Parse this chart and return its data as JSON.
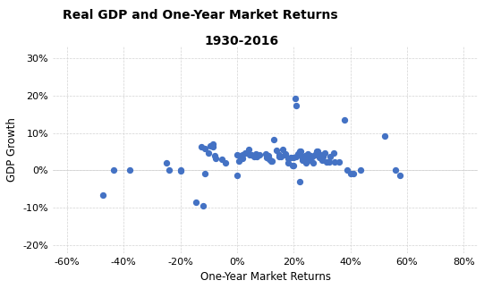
{
  "title_line1": "Real GDP and One-Year Market Returns",
  "title_line2": "1930-2016",
  "xlabel": "One-Year Market Returns",
  "ylabel": "GDP Growth",
  "xlim": [
    -0.65,
    0.85
  ],
  "ylim": [
    -0.22,
    0.33
  ],
  "xticks": [
    -0.6,
    -0.4,
    -0.2,
    0.0,
    0.2,
    0.4,
    0.6,
    0.8
  ],
  "yticks": [
    -0.2,
    -0.1,
    0.0,
    0.1,
    0.2,
    0.3
  ],
  "dot_color": "#4472C4",
  "dot_size": 18,
  "scatter_x": [
    -0.473,
    -0.435,
    -0.38,
    -0.25,
    -0.24,
    -0.2,
    -0.2,
    -0.145,
    -0.125,
    -0.115,
    -0.1,
    -0.095,
    -0.085,
    -0.085,
    -0.08,
    -0.075,
    -0.055,
    -0.04,
    -0.12,
    -0.115,
    0.0,
    0.0,
    0.005,
    0.01,
    0.02,
    0.02,
    0.03,
    0.04,
    0.045,
    0.05,
    0.06,
    0.065,
    0.07,
    0.08,
    0.1,
    0.105,
    0.11,
    0.115,
    0.12,
    0.125,
    0.13,
    0.14,
    0.15,
    0.15,
    0.155,
    0.16,
    0.17,
    0.17,
    0.18,
    0.18,
    0.19,
    0.195,
    0.2,
    0.2,
    0.205,
    0.21,
    0.21,
    0.215,
    0.22,
    0.22,
    0.225,
    0.23,
    0.23,
    0.235,
    0.24,
    0.245,
    0.25,
    0.25,
    0.255,
    0.26,
    0.265,
    0.27,
    0.275,
    0.28,
    0.285,
    0.29,
    0.295,
    0.3,
    0.305,
    0.31,
    0.315,
    0.325,
    0.33,
    0.34,
    0.345,
    0.36,
    0.38,
    0.39,
    0.4,
    0.41,
    0.435,
    0.52,
    0.56,
    0.575
  ],
  "scatter_y": [
    -0.065,
    0.0,
    0.0,
    0.019,
    0.001,
    -0.001,
    0.0,
    -0.086,
    0.063,
    0.059,
    0.046,
    0.065,
    0.062,
    0.07,
    0.039,
    0.033,
    0.03,
    0.02,
    -0.095,
    -0.009,
    0.042,
    -0.013,
    0.025,
    0.04,
    0.042,
    0.033,
    0.046,
    0.055,
    0.041,
    0.042,
    0.038,
    0.043,
    0.038,
    0.041,
    0.043,
    0.035,
    0.04,
    0.03,
    0.025,
    0.025,
    0.082,
    0.053,
    0.042,
    0.036,
    0.036,
    0.055,
    0.043,
    0.041,
    0.033,
    0.019,
    0.034,
    0.012,
    0.034,
    0.012,
    0.192,
    0.174,
    0.038,
    0.044,
    -0.031,
    0.052,
    0.052,
    0.034,
    0.027,
    0.038,
    0.039,
    0.02,
    0.043,
    0.034,
    0.027,
    0.039,
    0.038,
    0.02,
    0.042,
    0.052,
    0.051,
    0.034,
    0.042,
    0.027,
    0.037,
    0.046,
    0.022,
    0.023,
    0.037,
    0.046,
    0.022,
    0.023,
    0.135,
    0.0,
    -0.008,
    -0.008,
    0.0,
    0.092,
    0.0,
    -0.014
  ]
}
